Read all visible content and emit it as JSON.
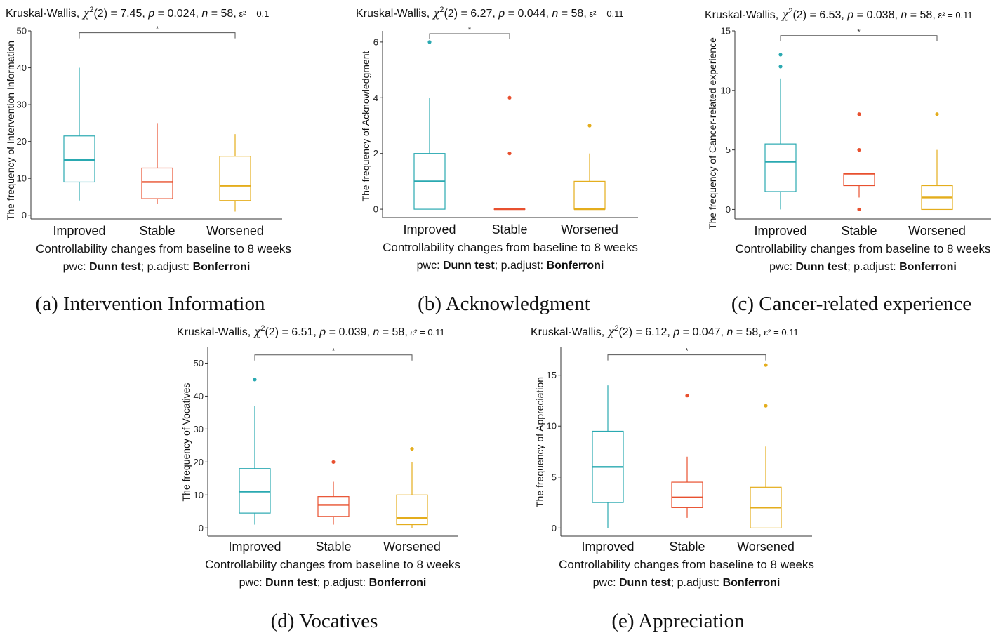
{
  "colors": {
    "Improved": "#2aa9b1",
    "Stable": "#e8502f",
    "Worsened": "#e4ad1c",
    "axis": "#333333",
    "bracket": "#555555"
  },
  "chart_data": [
    {
      "type": "box",
      "title": {
        "test": "Kruskal-Wallis, ",
        "chi": "χ",
        "sup": "2",
        "rest": "(2) = 7.45, ",
        "p_label": "p",
        "p_val": " = 0.024, ",
        "n_label": "n",
        "n_val": " = 58,",
        "eps": "ε² = 0.1"
      },
      "categories": [
        "Improved",
        "Stable",
        "Worsened"
      ],
      "boxes": [
        {
          "group": "Improved",
          "whisker_low": 4,
          "q1": 9,
          "median": 15,
          "q3": 21.5,
          "whisker_high": 40,
          "outliers": []
        },
        {
          "group": "Stable",
          "whisker_low": 3,
          "q1": 4.5,
          "median": 9,
          "q3": 12.8,
          "whisker_high": 25,
          "outliers": []
        },
        {
          "group": "Worsened",
          "whisker_low": 1,
          "q1": 4,
          "median": 8,
          "q3": 16,
          "whisker_high": 22,
          "outliers": []
        }
      ],
      "yticks": [
        0,
        10,
        20,
        30,
        40,
        50
      ],
      "ylim": [
        -1,
        50
      ],
      "ylabel": "The frequency of Intervention Information",
      "xlabel": "Controllability changes from baseline to 8 weeks",
      "significance": {
        "from": "Improved",
        "to": "Worsened",
        "level": 49.5,
        "label": "*"
      },
      "footnote": {
        "pwc": "pwc: ",
        "test": "Dunn test",
        "sep": "; p.adjust: ",
        "adjust": "Bonferroni"
      },
      "caption": "(a) Intervention Information"
    },
    {
      "type": "box",
      "title": {
        "test": "Kruskal-Wallis, ",
        "chi": "χ",
        "sup": "2",
        "rest": "(2) = 6.27, ",
        "p_label": "p",
        "p_val": " = 0.044, ",
        "n_label": "n",
        "n_val": " = 58,",
        "eps": "ε² = 0.11"
      },
      "categories": [
        "Improved",
        "Stable",
        "Worsened"
      ],
      "boxes": [
        {
          "group": "Improved",
          "whisker_low": 0,
          "q1": 0,
          "median": 1,
          "q3": 2,
          "whisker_high": 4,
          "outliers": [
            6
          ]
        },
        {
          "group": "Stable",
          "whisker_low": 0,
          "q1": 0,
          "median": 0,
          "q3": 0,
          "whisker_high": 0,
          "outliers": [
            2,
            4
          ]
        },
        {
          "group": "Worsened",
          "whisker_low": 0,
          "q1": 0,
          "median": 0,
          "q3": 1,
          "whisker_high": 2,
          "outliers": [
            3
          ]
        }
      ],
      "yticks": [
        0,
        2,
        4,
        6
      ],
      "ylim": [
        -0.3,
        6.4
      ],
      "ylabel": "The frequency of Acknowledgment",
      "xlabel": "Controllability changes from baseline to 8 weeks",
      "significance": {
        "from": "Improved",
        "to": "Stable",
        "level": 6.3,
        "label": "*"
      },
      "footnote": {
        "pwc": "pwc: ",
        "test": "Dunn test",
        "sep": "; p.adjust: ",
        "adjust": "Bonferroni"
      },
      "caption": "(b) Acknowledgment"
    },
    {
      "type": "box",
      "title": {
        "test": "Kruskal-Wallis, ",
        "chi": "χ",
        "sup": "2",
        "rest": "(2) = 6.53, ",
        "p_label": "p",
        "p_val": " = 0.038, ",
        "n_label": "n",
        "n_val": " = 58,",
        "eps": "ε² = 0.11"
      },
      "categories": [
        "Improved",
        "Stable",
        "Worsened"
      ],
      "boxes": [
        {
          "group": "Improved",
          "whisker_low": 0,
          "q1": 1.5,
          "median": 4,
          "q3": 5.5,
          "whisker_high": 11,
          "outliers": [
            12,
            13
          ]
        },
        {
          "group": "Stable",
          "whisker_low": 1,
          "q1": 2,
          "median": 3,
          "q3": 3,
          "whisker_high": 3,
          "outliers": [
            0,
            5,
            8
          ]
        },
        {
          "group": "Worsened",
          "whisker_low": 0,
          "q1": 0,
          "median": 1,
          "q3": 2,
          "whisker_high": 5,
          "outliers": [
            8
          ]
        }
      ],
      "yticks": [
        0,
        5,
        10,
        15
      ],
      "ylim": [
        -0.8,
        15
      ],
      "ylabel": "The frequency of Cancer-related experience",
      "xlabel": "Controllability changes from baseline to 8 weeks",
      "significance": {
        "from": "Improved",
        "to": "Worsened",
        "level": 14.6,
        "label": "*"
      },
      "footnote": {
        "pwc": "pwc: ",
        "test": "Dunn test",
        "sep": "; p.adjust: ",
        "adjust": "Bonferroni"
      },
      "caption": "(c) Cancer-related experience"
    },
    {
      "type": "box",
      "title": {
        "test": "Kruskal-Wallis, ",
        "chi": "χ",
        "sup": "2",
        "rest": "(2) = 6.51, ",
        "p_label": "p",
        "p_val": " = 0.039, ",
        "n_label": "n",
        "n_val": " = 58,",
        "eps": "ε² = 0.11"
      },
      "categories": [
        "Improved",
        "Stable",
        "Worsened"
      ],
      "boxes": [
        {
          "group": "Improved",
          "whisker_low": 1,
          "q1": 4.5,
          "median": 11,
          "q3": 18,
          "whisker_high": 37,
          "outliers": [
            45
          ]
        },
        {
          "group": "Stable",
          "whisker_low": 1,
          "q1": 3.5,
          "median": 7,
          "q3": 9.5,
          "whisker_high": 14,
          "outliers": [
            20
          ]
        },
        {
          "group": "Worsened",
          "whisker_low": 0,
          "q1": 1,
          "median": 3,
          "q3": 10,
          "whisker_high": 20,
          "outliers": [
            24
          ]
        }
      ],
      "yticks": [
        0,
        10,
        20,
        30,
        40,
        50
      ],
      "ylim": [
        -2.5,
        55
      ],
      "ylabel": "The frequency of Vocatives",
      "xlabel": "Controllability changes from baseline to 8 weeks",
      "significance": {
        "from": "Improved",
        "to": "Worsened",
        "level": 52.5,
        "label": "*"
      },
      "footnote": {
        "pwc": "pwc: ",
        "test": "Dunn test",
        "sep": "; p.adjust: ",
        "adjust": "Bonferroni"
      },
      "caption": "(d) Vocatives"
    },
    {
      "type": "box",
      "title": {
        "test": "Kruskal-Wallis, ",
        "chi": "χ",
        "sup": "2",
        "rest": "(2) = 6.12, ",
        "p_label": "p",
        "p_val": " = 0.047, ",
        "n_label": "n",
        "n_val": " = 58,",
        "eps": "ε² = 0.11"
      },
      "categories": [
        "Improved",
        "Stable",
        "Worsened"
      ],
      "boxes": [
        {
          "group": "Improved",
          "whisker_low": 0,
          "q1": 2.5,
          "median": 6,
          "q3": 9.5,
          "whisker_high": 14,
          "outliers": []
        },
        {
          "group": "Stable",
          "whisker_low": 1,
          "q1": 2,
          "median": 3,
          "q3": 4.5,
          "whisker_high": 7,
          "outliers": [
            13
          ]
        },
        {
          "group": "Worsened",
          "whisker_low": 0,
          "q1": 0,
          "median": 2,
          "q3": 4,
          "whisker_high": 8,
          "outliers": [
            12,
            16
          ]
        }
      ],
      "yticks": [
        0,
        5,
        10,
        15
      ],
      "ylim": [
        -0.8,
        17.8
      ],
      "ylabel": "The frequency of Appreciation",
      "xlabel": "Controllability changes from baseline to 8 weeks",
      "significance": {
        "from": "Improved",
        "to": "Worsened",
        "level": 17.0,
        "label": "*"
      },
      "footnote": {
        "pwc": "pwc: ",
        "test": "Dunn test",
        "sep": "; p.adjust: ",
        "adjust": "Bonferroni"
      },
      "caption": "(e) Appreciation"
    }
  ]
}
